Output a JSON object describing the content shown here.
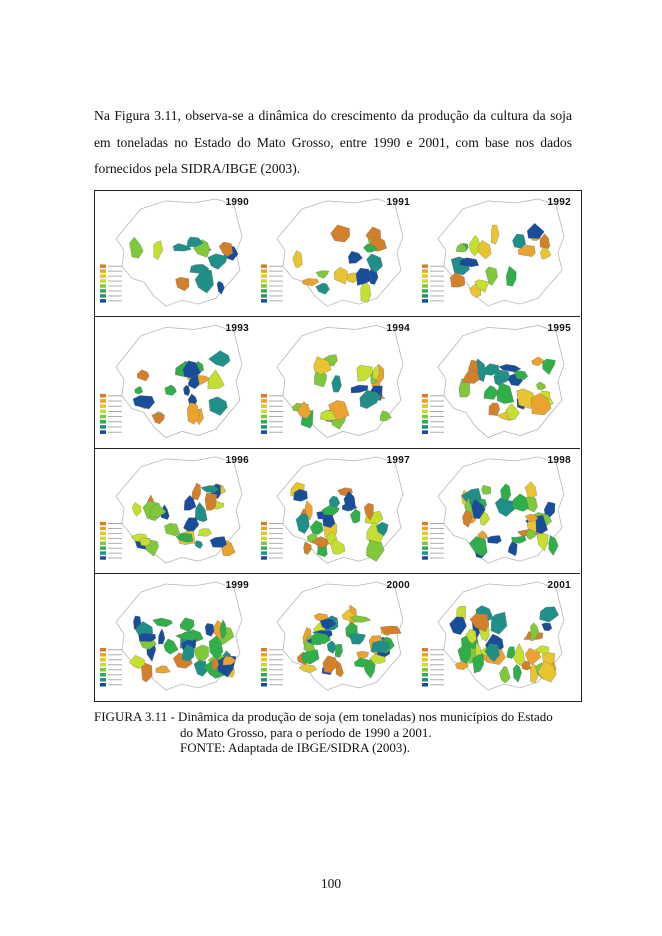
{
  "body_text": "Na Figura 3.11, observa-se a dinâmica do crescimento da produção da cultura da soja em toneladas no Estado do Mato Grosso, entre 1990 e 2001, com base nos dados fornecidos pela SIDRA/IBGE (2003).",
  "figure": {
    "panels": [
      {
        "year": "1990"
      },
      {
        "year": "1991"
      },
      {
        "year": "1992"
      },
      {
        "year": "1993"
      },
      {
        "year": "1994"
      },
      {
        "year": "1995"
      },
      {
        "year": "1996"
      },
      {
        "year": "1997"
      },
      {
        "year": "1998"
      },
      {
        "year": "1999"
      },
      {
        "year": "2000"
      },
      {
        "year": "2001"
      }
    ],
    "legend_colors": [
      "#d4802a",
      "#e9a32e",
      "#e8c530",
      "#c6de2e",
      "#7ec83a",
      "#2fae4a",
      "#1f8f88",
      "#184d9a"
    ],
    "outline_color": "#b8b8b8"
  },
  "caption": {
    "line1": "FIGURA 3.11 - Dinâmica da produção de soja (em toneladas) nos municípios do Estado",
    "line2": "do Mato Grosso, para o período de 1990 a 2001.",
    "line3": "FONTE: Adaptada de IBGE/SIDRA (2003)."
  },
  "page_number": "100"
}
